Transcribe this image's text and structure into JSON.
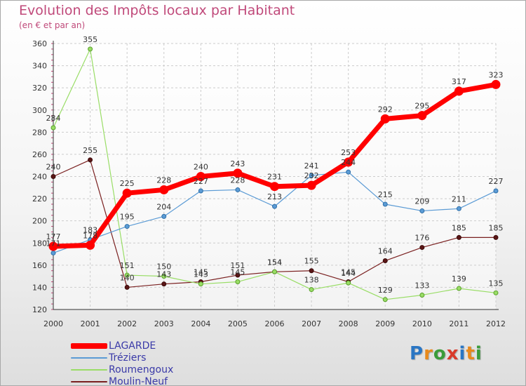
{
  "title": "Evolution des Impôts locaux par Habitant",
  "subtitle": "(en € et par an)",
  "logo": {
    "text": "Proxiti",
    "colors": [
      "#2a76c4",
      "#e88a1c",
      "#3a9c3a",
      "#d93a2a",
      "#2a76c4",
      "#e88a1c",
      "#3a9c3a"
    ]
  },
  "chart_data": {
    "type": "line",
    "x": [
      "2000",
      "2001",
      "2002",
      "2003",
      "2004",
      "2005",
      "2006",
      "2007",
      "2008",
      "2009",
      "2010",
      "2011",
      "2012"
    ],
    "ylim": [
      120,
      360
    ],
    "yticks": [
      120,
      140,
      160,
      180,
      200,
      220,
      240,
      260,
      280,
      300,
      320,
      340,
      360
    ],
    "grid": true,
    "legend": "bottom-left",
    "series": [
      {
        "name": "LAGARDE",
        "color": "#ff0000",
        "values": [
          177,
          178,
          225,
          228,
          240,
          243,
          231,
          232,
          253,
          292,
          295,
          317,
          323
        ]
      },
      {
        "name": "Tréziers",
        "color": "#5b9bd5",
        "values": [
          171,
          183,
          195,
          204,
          227,
          228,
          213,
          241,
          244,
          215,
          209,
          211,
          227
        ]
      },
      {
        "name": "Roumengoux",
        "color": "#99dd66",
        "values": [
          284,
          355,
          151,
          150,
          143,
          145,
          154,
          138,
          144,
          129,
          133,
          139,
          135
        ]
      },
      {
        "name": "Moulin-Neuf",
        "color": "#7a2020",
        "values": [
          240,
          255,
          140,
          143,
          145,
          151,
          154,
          155,
          145,
          164,
          176,
          185,
          185
        ]
      }
    ]
  }
}
